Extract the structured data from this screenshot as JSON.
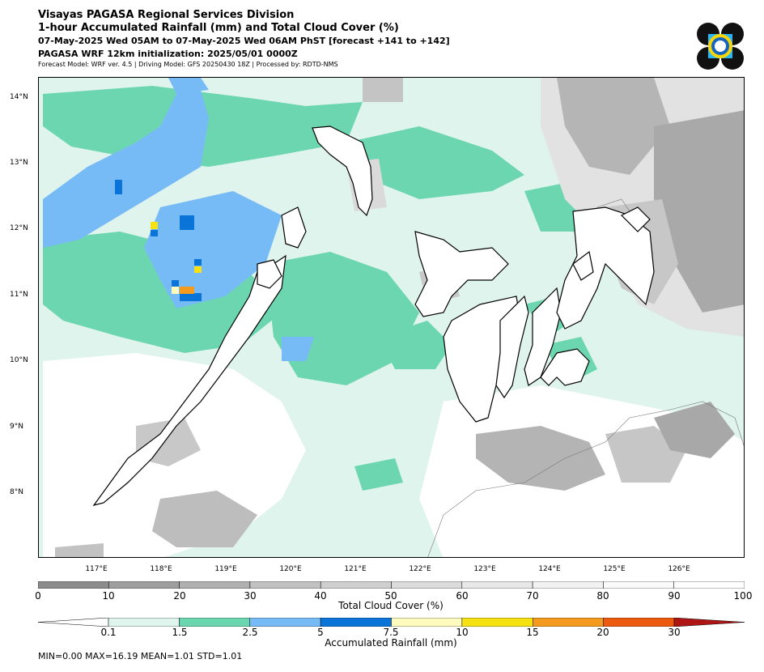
{
  "header": {
    "line1": "Visayas PAGASA Regional Services Division",
    "line2": "1-hour Accumulated Rainfall (mm) and Total Cloud Cover (%)",
    "line3": "07-May-2025 Wed 05AM to 07-May-2025 Wed 06AM PhST [forecast +141 to +142]",
    "line4": "PAGASA WRF 12km initialization: 2025/05/01 0000Z",
    "line5": "Forecast Model: WRF ver. 4.5 | Driving Model: GFS 20250430 18Z | Processed by: RDTD-NMS"
  },
  "map": {
    "lon_labels": [
      "117°E",
      "118°E",
      "119°E",
      "120°E",
      "121°E",
      "122°E",
      "123°E",
      "124°E",
      "125°E",
      "126°E"
    ],
    "lat_labels": [
      "14°N",
      "13°N",
      "12°N",
      "11°N",
      "10°N",
      "9°N",
      "8°N"
    ],
    "ocean_color": "#dff4ec"
  },
  "cloud_cover": {
    "title": "Total Cloud Cover (%)",
    "ticks": [
      "0",
      "10",
      "20",
      "30",
      "40",
      "50",
      "60",
      "70",
      "80",
      "90",
      "100"
    ],
    "colors": [
      "#8c8c8c",
      "#9e9e9e",
      "#b0b0b0",
      "#c1c1c1",
      "#cfcfcf",
      "#dcdcdc",
      "#e8e8e8",
      "#f2f2f2",
      "#fafafa",
      "#ffffff"
    ]
  },
  "rainfall": {
    "title": "Accumulated Rainfall (mm)",
    "ticks": [
      "0.1",
      "1.5",
      "2.5",
      "5",
      "7.5",
      "10",
      "15",
      "20",
      "30"
    ],
    "colors": [
      "#dff4ec",
      "#6cd6b0",
      "#77bbf6",
      "#0a74d8",
      "#fffbbf",
      "#f6e113",
      "#f49a1f",
      "#ec5a10"
    ],
    "over_color": "#b01515"
  },
  "stats": "MIN=0.00   MAX=16.19   MEAN=1.01   STD=1.01"
}
